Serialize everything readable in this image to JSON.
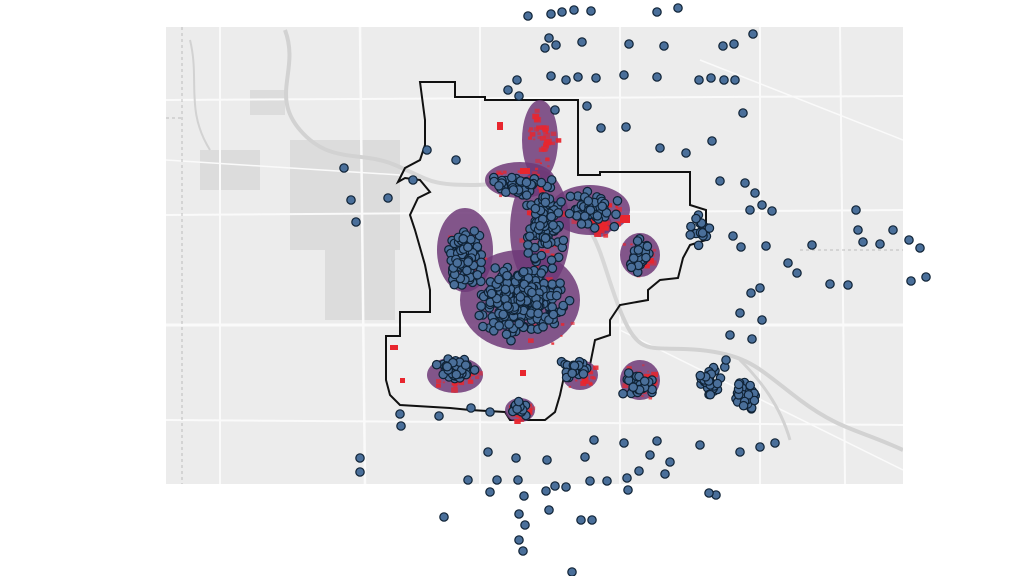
{
  "map": {
    "colors": {
      "page_background": "#ffffff",
      "basemap_fill": "#ececec",
      "road_color": "#f9f9f9",
      "water_color": "#d4d4d4",
      "urban_color": "#dadada",
      "boundary_stroke": "#111111",
      "heat_red": "#e8262e",
      "heat_purple": "#6e3a78",
      "point_fill": "#4a6f9a",
      "point_stroke": "#0f2235"
    },
    "layers": [
      "basemap",
      "city-boundary",
      "density-heat",
      "point-locations"
    ],
    "boundary_label": "",
    "point_marker": "circle"
  }
}
